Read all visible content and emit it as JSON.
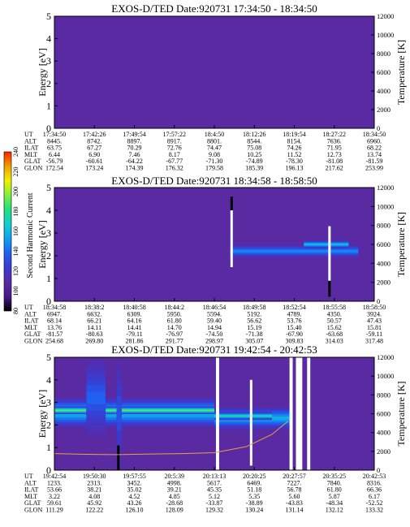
{
  "chart_data": [
    {
      "type": "heatmap",
      "title": "EXOS-D/TED   Date:920731  17:34:50 - 18:34:50",
      "ylabel": "Energy [eV]",
      "y2label": "Temperature [K]",
      "ylim": [
        0,
        5
      ],
      "y2lim": [
        0,
        12000
      ],
      "yticks": [
        "0",
        "1",
        "2",
        "3",
        "4",
        "5"
      ],
      "y2ticks": [
        "0",
        "2000",
        "4000",
        "6000",
        "8000",
        "10000",
        "12000"
      ],
      "background": "#5a2aa2",
      "bands": [],
      "gaps": [],
      "spikes": [],
      "temperature_trace": null,
      "orbit": {
        "labels": [
          "UT",
          "ALT",
          "ILAT",
          "MLT",
          "GLAT",
          "GLON"
        ],
        "columns": [
          [
            "17:34:50",
            "8445.",
            "63.75",
            "6.44",
            "-56.79",
            "172.54"
          ],
          [
            "17:42:26",
            "8742.",
            "67.27",
            "6.90",
            "-60.61",
            "173.24"
          ],
          [
            "17:49:54",
            "8897.",
            "70.29",
            "7.46",
            "-64.22",
            "174.39"
          ],
          [
            "17:57:22",
            "8917.",
            "72.76",
            "8.17",
            "-67.77",
            "176.32"
          ],
          [
            "18:4:50",
            "8801.",
            "74.47",
            "9.08",
            "-71.30",
            "179.58"
          ],
          [
            "18:12:26",
            "8544.",
            "75.08",
            "10.25",
            "-74.89",
            "185.39"
          ],
          [
            "18:19:54",
            "8154.",
            "74.26",
            "11.52",
            "-78.30",
            "196.13"
          ],
          [
            "18:27:22",
            "7636.",
            "71.95",
            "12.73",
            "-81.08",
            "217.62"
          ],
          [
            "18:34:50",
            "6960.",
            "68.22",
            "13.74",
            "-81.59",
            "253.99"
          ]
        ]
      }
    },
    {
      "type": "heatmap",
      "title": "EXOS-D/TED   Date:920731  18:34:58 - 18:58:50",
      "ylabel": "Energy [eV]",
      "y2label": "Temperature [K]",
      "ylim": [
        0,
        5
      ],
      "y2lim": [
        0,
        12000
      ],
      "yticks": [
        "0",
        "1",
        "2",
        "3",
        "4",
        "5"
      ],
      "y2ticks": [
        "0",
        "2000",
        "4000",
        "6000",
        "8000",
        "10000",
        "12000"
      ],
      "background": "#5a2aa2",
      "bands": [
        {
          "from": 0.55,
          "to": 0.95,
          "center": 2.2,
          "width": 0.55,
          "level": 0.45
        },
        {
          "from": 0.78,
          "to": 0.92,
          "center": 2.5,
          "width": 0.35,
          "level": 0.6
        }
      ],
      "gaps": [],
      "spikes": [
        {
          "at": 0.554,
          "from": 1.5,
          "to": 4.0,
          "color": "#ffffff"
        },
        {
          "at": 0.554,
          "from": 4.0,
          "to": 4.6,
          "color": "#000000"
        },
        {
          "at": 0.86,
          "from": 0.9,
          "to": 3.3,
          "color": "#ffffff"
        },
        {
          "at": 0.86,
          "from": 0.2,
          "to": 0.9,
          "color": "#000000"
        }
      ],
      "temperature_trace": null,
      "orbit": {
        "labels": [
          "UT",
          "ALT",
          "ILAT",
          "MLT",
          "GLAT",
          "GLON"
        ],
        "columns": [
          [
            "18:34:58",
            "6947.",
            "68.14",
            "13.76",
            "-81.57",
            "254.68"
          ],
          [
            "18:38:2",
            "6632.",
            "66.21",
            "14.11",
            "-80.63",
            "269.80"
          ],
          [
            "18:40:58",
            "6309.",
            "64.16",
            "14.41",
            "-79.11",
            "281.86"
          ],
          [
            "18:44:2",
            "5950.",
            "61.80",
            "14.70",
            "-76.97",
            "291.77"
          ],
          [
            "18:46:54",
            "5594.",
            "59.40",
            "14.94",
            "-74.50",
            "298.97"
          ],
          [
            "18:49:58",
            "5192.",
            "56.62",
            "15.19",
            "-71.38",
            "305.07"
          ],
          [
            "18:52:54",
            "4789.",
            "53.76",
            "15.40",
            "-67.90",
            "309.83"
          ],
          [
            "18:55:58",
            "4350.",
            "50.57",
            "15.62",
            "-63.68",
            "314.03"
          ],
          [
            "18:58:50",
            "3924.",
            "47.43",
            "15.81",
            "-59.11",
            "317.48"
          ]
        ]
      }
    },
    {
      "type": "heatmap",
      "title": "EXOS-D/TED   Date:920731  19:42:54 - 20:42:53",
      "ylabel": "Energy [eV]",
      "y2label": "Temperature [K]",
      "ylim": [
        0,
        5
      ],
      "y2lim": [
        0,
        12000
      ],
      "yticks": [
        "0",
        "1",
        "2",
        "3",
        "4",
        "5"
      ],
      "y2ticks": [
        "0",
        "2000",
        "4000",
        "6000",
        "8000",
        "10000",
        "12000"
      ],
      "background": "#5a2aa2",
      "bands": [
        {
          "from": 0.0,
          "to": 0.5,
          "center": 2.55,
          "width": 1.3,
          "level": 0.62
        },
        {
          "from": 0.0,
          "to": 0.5,
          "center": 2.65,
          "width": 0.35,
          "level": 0.85
        },
        {
          "from": 0.5,
          "to": 0.74,
          "center": 2.3,
          "width": 1.0,
          "level": 0.55
        },
        {
          "from": 0.5,
          "to": 0.68,
          "center": 2.4,
          "width": 0.35,
          "level": 0.72
        },
        {
          "from": 0.1,
          "to": 0.16,
          "center": 3.2,
          "width": 3.4,
          "level": 0.35
        },
        {
          "from": 0.195,
          "to": 0.21,
          "center": 2.5,
          "width": 4.6,
          "level": 0.3
        }
      ],
      "gaps": [
        {
          "from": 0.505,
          "to": 0.515
        },
        {
          "from": 0.735,
          "to": 0.745
        },
        {
          "from": 0.755,
          "to": 0.775
        },
        {
          "from": 0.79,
          "to": 0.8
        }
      ],
      "spikes": [
        {
          "at": 0.615,
          "from": 0.2,
          "to": 4.0,
          "color": "#ffffff"
        },
        {
          "at": 0.2,
          "from": 0.0,
          "to": 1.1,
          "color": "#000000"
        }
      ],
      "temperature_trace": {
        "color": "#e8a040",
        "points": [
          [
            0.0,
            1760
          ],
          [
            0.1,
            1680
          ],
          [
            0.2,
            1650
          ],
          [
            0.3,
            1720
          ],
          [
            0.4,
            1760
          ],
          [
            0.5,
            1860
          ],
          [
            0.6,
            2500
          ],
          [
            0.68,
            3800
          ],
          [
            0.73,
            5200
          ]
        ]
      },
      "orbit": {
        "labels": [
          "UT",
          "ALT",
          "ILAT",
          "MLT",
          "GLAT",
          "GLON"
        ],
        "columns": [
          [
            "19:42:54",
            "1233.",
            "53.66",
            "3.22",
            "59.61",
            "111.29"
          ],
          [
            "19:50:30",
            "2313.",
            "38.21",
            "4.08",
            "45.92",
            "122.22"
          ],
          [
            "19:57:55",
            "3452.",
            "35.02",
            "4.52",
            "43.26",
            "126.10"
          ],
          [
            "20:5:39",
            "4998.",
            "39.21",
            "4.85",
            "-28.68",
            "128.09"
          ],
          [
            "20:13:13",
            "5617.",
            "45.35",
            "5.12",
            "-33.87",
            "129.32"
          ],
          [
            "20:20:25",
            "6469.",
            "51.18",
            "5.35",
            "-38.89",
            "130.24"
          ],
          [
            "20:27:57",
            "7227.",
            "56.78",
            "5.60",
            "-43.83",
            "131.14"
          ],
          [
            "20:35:25",
            "7840.",
            "61.80",
            "5.87",
            "-48.34",
            "132.12"
          ],
          [
            "20:42:53",
            "8316.",
            "66.36",
            "6.17",
            "-52.52",
            "133.32"
          ]
        ]
      }
    }
  ],
  "colorbar": {
    "label": "Second Harmonic Current",
    "ticks": [
      "80",
      "100",
      "120",
      "140",
      "160",
      "180",
      "200",
      "220",
      "240"
    ],
    "colors": [
      "#000000",
      "#4a1a8a",
      "#5a2aa2",
      "#3a3ad0",
      "#2060f0",
      "#10a0f0",
      "#10d0d0",
      "#20e080",
      "#80f040",
      "#f0f000",
      "#f0a000",
      "#ff2000"
    ]
  }
}
